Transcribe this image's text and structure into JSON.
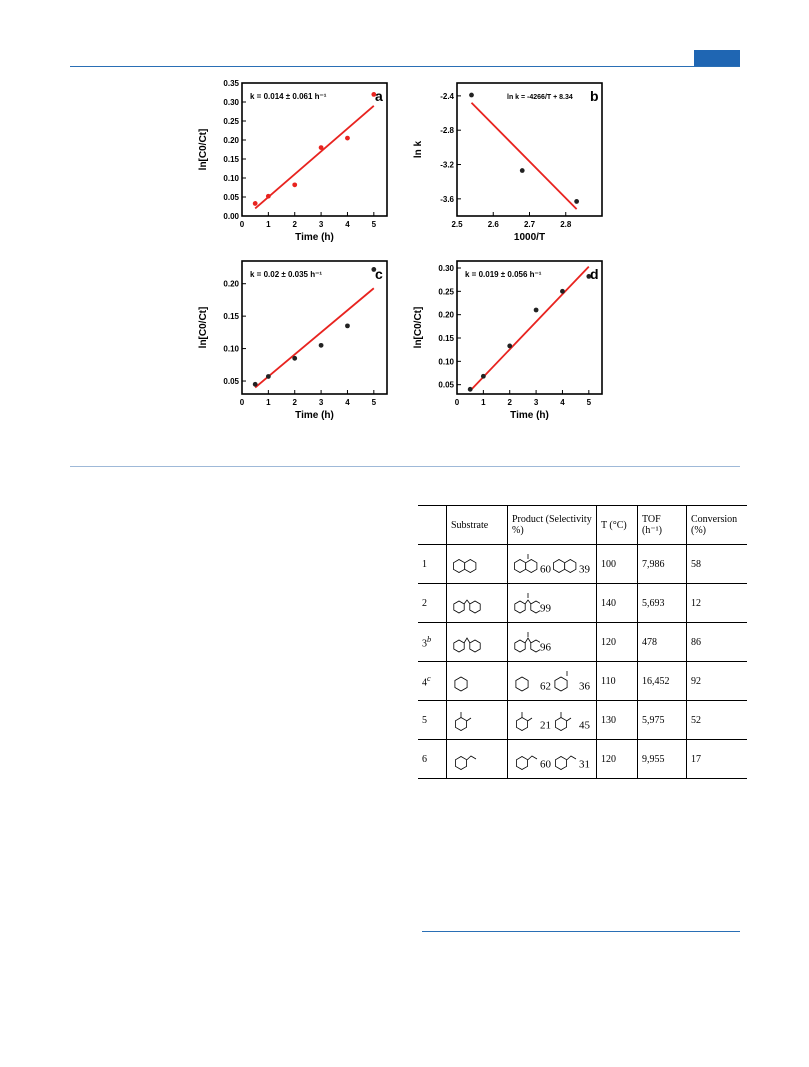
{
  "header": {
    "accent_color": "#1f66b3"
  },
  "figure": {
    "panels": [
      {
        "letter": "a",
        "annotation": "k = 0.014 ± 0.061 h⁻¹",
        "xlabel": "Time (h)",
        "ylabel": "ln[C0/Ct]",
        "line_color": "#e8231f",
        "point_color": "#e8231f"
      },
      {
        "letter": "b",
        "annotation": "ln k = -4266/T + 8.34",
        "xlabel": "1000/T",
        "ylabel": "ln k",
        "line_color": "#e8231f",
        "point_color": "#222222"
      },
      {
        "letter": "c",
        "annotation": "k = 0.02 ± 0.035 h⁻¹",
        "xlabel": "Time (h)",
        "ylabel": "ln[C0/Ct]",
        "line_color": "#e8231f",
        "point_color": "#222222"
      },
      {
        "letter": "d",
        "annotation": "k = 0.019 ± 0.056 h⁻¹",
        "xlabel": "Time (h)",
        "ylabel": "ln[C0/Ct]",
        "line_color": "#e8231f",
        "point_color": "#222222"
      }
    ]
  },
  "chart_data": [
    {
      "type": "scatter",
      "panel": "a",
      "x": [
        0.5,
        1,
        2,
        3,
        4,
        5
      ],
      "y": [
        0.033,
        0.052,
        0.082,
        0.18,
        0.205,
        0.32
      ],
      "fit": {
        "x": [
          0.5,
          5
        ],
        "y": [
          0.02,
          0.29
        ]
      },
      "xlim": [
        0,
        5.5
      ],
      "ylim": [
        0,
        0.35
      ],
      "xticks": [
        0,
        1,
        2,
        3,
        4,
        5
      ],
      "yticks": [
        0.0,
        0.05,
        0.1,
        0.15,
        0.2,
        0.25,
        0.3,
        0.35
      ],
      "xlabel": "Time (h)",
      "ylabel": "ln[C0/Ct]"
    },
    {
      "type": "scatter",
      "panel": "b",
      "x": [
        2.54,
        2.68,
        2.83
      ],
      "y": [
        -2.39,
        -3.27,
        -3.63
      ],
      "fit": {
        "x": [
          2.54,
          2.83
        ],
        "y": [
          -2.48,
          -3.72
        ]
      },
      "xlim": [
        2.5,
        2.9
      ],
      "ylim": [
        -3.8,
        -2.25
      ],
      "xticks": [
        2.5,
        2.6,
        2.7,
        2.8
      ],
      "yticks": [
        -2.4,
        -2.8,
        -3.2,
        -3.6
      ],
      "xlabel": "1000/T",
      "ylabel": "ln k"
    },
    {
      "type": "scatter",
      "panel": "c",
      "x": [
        0.5,
        1,
        2,
        3,
        4,
        5
      ],
      "y": [
        0.045,
        0.057,
        0.085,
        0.105,
        0.135,
        0.222
      ],
      "fit": {
        "x": [
          0.5,
          5
        ],
        "y": [
          0.04,
          0.193
        ]
      },
      "xlim": [
        0,
        5.5
      ],
      "ylim": [
        0.03,
        0.235
      ],
      "xticks": [
        0,
        1,
        2,
        3,
        4,
        5
      ],
      "yticks": [
        0.05,
        0.1,
        0.15,
        0.2
      ],
      "xlabel": "Time (h)",
      "ylabel": "ln[C0/Ct]"
    },
    {
      "type": "scatter",
      "panel": "d",
      "x": [
        0.5,
        1,
        2,
        3,
        4,
        5
      ],
      "y": [
        0.04,
        0.068,
        0.133,
        0.21,
        0.25,
        0.282
      ],
      "fit": {
        "x": [
          0.5,
          5
        ],
        "y": [
          0.037,
          0.303
        ]
      },
      "xlim": [
        0,
        5.5
      ],
      "ylim": [
        0.03,
        0.315
      ],
      "xticks": [
        0,
        1,
        2,
        3,
        4,
        5
      ],
      "yticks": [
        0.05,
        0.1,
        0.15,
        0.2,
        0.25,
        0.3
      ],
      "xlabel": "Time (h)",
      "ylabel": "ln[C0/Ct]"
    }
  ],
  "table": {
    "headers": [
      "",
      "Substrate",
      "Product (Selectivity %)",
      "T (°C)",
      "TOF (h⁻¹)",
      "Conversion (%)"
    ],
    "rows": [
      {
        "entry": "1",
        "sup": "",
        "products": [
          {
            "pct": "60"
          },
          {
            "pct": "39"
          }
        ],
        "substrate_icon": "tetralin-icon",
        "t": "100",
        "tof": "7,986",
        "conv": "58"
      },
      {
        "entry": "2",
        "sup": "",
        "products": [
          {
            "pct": "99"
          }
        ],
        "substrate_icon": "diphenylmethane-icon",
        "t": "140",
        "tof": "5,693",
        "conv": "12"
      },
      {
        "entry": "3",
        "sup": "b",
        "products": [
          {
            "pct": "96"
          }
        ],
        "substrate_icon": "fluorene-icon",
        "t": "120",
        "tof": "478",
        "conv": "86"
      },
      {
        "entry": "4",
        "sup": "c",
        "products": [
          {
            "pct": "62"
          },
          {
            "pct": "36"
          }
        ],
        "substrate_icon": "cyclohexene-icon",
        "t": "110",
        "tof": "16,452",
        "conv": "92"
      },
      {
        "entry": "5",
        "sup": "",
        "products": [
          {
            "pct": "21"
          },
          {
            "pct": "45"
          }
        ],
        "substrate_icon": "o-xylene-icon",
        "t": "130",
        "tof": "5,975",
        "conv": "52"
      },
      {
        "entry": "6",
        "sup": "",
        "products": [
          {
            "pct": "60"
          },
          {
            "pct": "31"
          }
        ],
        "substrate_icon": "ethylbenzene-icon",
        "t": "120",
        "tof": "9,955",
        "conv": "17"
      }
    ]
  }
}
